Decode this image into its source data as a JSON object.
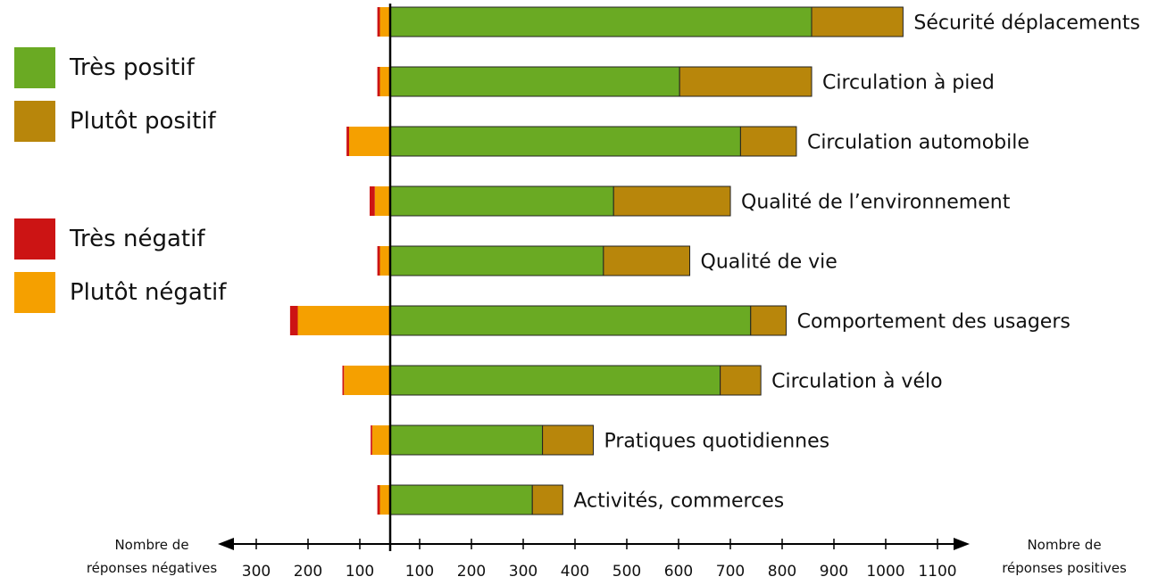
{
  "colors": {
    "tres_positif": "#6aaa23",
    "plutot_positif": "#b8860b",
    "tres_negatif": "#cc1414",
    "plutot_negatif": "#f5a000"
  },
  "legend": [
    {
      "label": "Très positif",
      "color_key": "tres_positif"
    },
    {
      "label": "Plutôt positif",
      "color_key": "plutot_positif"
    },
    {
      "label": "Très négatif",
      "color_key": "tres_negatif"
    },
    {
      "label": "Plutôt négatif",
      "color_key": "plutot_negatif"
    }
  ],
  "chart_data": {
    "type": "bar",
    "orientation": "horizontal-diverging",
    "categories": [
      "Sécurité déplacements",
      "Circulation à pied",
      "Circulation automobile",
      "Qualité de l’environnement",
      "Qualité de vie",
      "Comportement des usagers",
      "Circulation à vélo",
      "Pratiques quotidiennes",
      "Activités, commerces"
    ],
    "series": [
      {
        "name": "Très positif",
        "side": "positive",
        "values": [
          830,
          570,
          690,
          440,
          420,
          710,
          650,
          300,
          280
        ]
      },
      {
        "name": "Plutôt positif",
        "side": "positive",
        "values": [
          180,
          260,
          110,
          230,
          170,
          70,
          80,
          100,
          60
        ]
      },
      {
        "name": "Plutôt négatif",
        "side": "negative",
        "values": [
          20,
          20,
          80,
          30,
          20,
          180,
          90,
          35,
          20
        ]
      },
      {
        "name": "Très négatif",
        "side": "negative",
        "values": [
          5,
          5,
          5,
          10,
          5,
          15,
          3,
          3,
          5
        ]
      }
    ],
    "x_negative_ticks": [
      300,
      200,
      100
    ],
    "x_positive_ticks": [
      100,
      200,
      300,
      400,
      500,
      600,
      700,
      800,
      900,
      1000,
      1100
    ],
    "xlim_negative": [
      0,
      350
    ],
    "xlim_positive": [
      0,
      1100
    ],
    "xlabel_negative": "Nombre de réponses négatives",
    "xlabel_positive": "Nombre de réponses positives",
    "legend_position": "left"
  }
}
